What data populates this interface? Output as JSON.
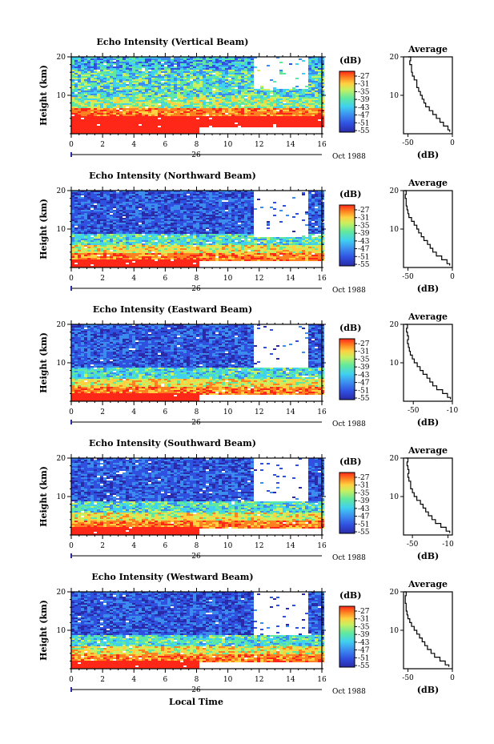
{
  "chart_data": [
    {
      "type": "heatmap",
      "beam": "vertical",
      "title": "Echo Intensity (Vertical Beam)",
      "ylabel": "Height (km)",
      "xlabel": "",
      "x_ticks": [
        "0",
        "2",
        "4",
        "6",
        "8",
        "10",
        "12",
        "14",
        "16"
      ],
      "y_ticks": [
        "10",
        "20"
      ],
      "xlim": [
        0,
        16
      ],
      "ylim": [
        0,
        20
      ],
      "date_label": "Oct 1988",
      "day_label": "26",
      "colorbar_label": "(dB)",
      "colorbar_ticks": [
        "-27",
        "-31",
        "-35",
        "-39",
        "-43",
        "-47",
        "-51",
        "-55"
      ],
      "missing_after_8": true,
      "missing_block": [
        11.5,
        15,
        12,
        20
      ],
      "profile": {
        "title": "Average",
        "xlabel": "(dB)",
        "x_ticks": [
          "-50",
          "0"
        ],
        "y_ticks": [
          "10",
          "20"
        ],
        "xlim": [
          -55,
          0
        ],
        "heights": [
          0.5,
          1,
          2,
          3,
          4,
          5,
          6,
          7,
          8,
          9,
          10,
          11,
          12,
          13,
          14,
          15,
          16,
          17,
          18,
          19,
          20
        ],
        "values": [
          -3,
          -5,
          -10,
          -14,
          -18,
          -22,
          -26,
          -30,
          -32,
          -34,
          -36,
          -38,
          -40,
          -40,
          -43,
          -45,
          -46,
          -46,
          -48,
          -47,
          -50
        ]
      }
    },
    {
      "type": "heatmap",
      "beam": "northward",
      "title": "Echo Intensity (Northward Beam)",
      "ylabel": "Height (km)",
      "xlabel": "",
      "x_ticks": [
        "0",
        "2",
        "4",
        "6",
        "8",
        "10",
        "12",
        "14",
        "16"
      ],
      "y_ticks": [
        "10",
        "20"
      ],
      "xlim": [
        0,
        16
      ],
      "ylim": [
        0,
        20
      ],
      "date_label": "Oct 1988",
      "day_label": "26",
      "colorbar_label": "(dB)",
      "colorbar_ticks": [
        "-27",
        "-31",
        "-35",
        "-39",
        "-43",
        "-47",
        "-51",
        "-55"
      ],
      "missing_after_8": true,
      "missing_block": [
        11.5,
        15,
        8,
        20
      ],
      "profile": {
        "title": "Average",
        "xlabel": "(dB)",
        "x_ticks": [
          "-50",
          "0"
        ],
        "y_ticks": [
          "10",
          "20"
        ],
        "xlim": [
          -55,
          0
        ],
        "heights": [
          0.5,
          1,
          2,
          3,
          4,
          5,
          6,
          7,
          8,
          9,
          10,
          11,
          12,
          13,
          14,
          15,
          16,
          17,
          18,
          19,
          20
        ],
        "values": [
          -3,
          -6,
          -12,
          -18,
          -22,
          -25,
          -28,
          -32,
          -35,
          -38,
          -40,
          -43,
          -46,
          -49,
          -50,
          -51,
          -52,
          -52,
          -53,
          -52,
          -54
        ]
      }
    },
    {
      "type": "heatmap",
      "beam": "eastward",
      "title": "Echo Intensity (Eastward Beam)",
      "ylabel": "Height (km)",
      "xlabel": "",
      "x_ticks": [
        "0",
        "2",
        "4",
        "6",
        "8",
        "10",
        "12",
        "14",
        "16"
      ],
      "y_ticks": [
        "10",
        "20"
      ],
      "xlim": [
        0,
        16
      ],
      "ylim": [
        0,
        20
      ],
      "date_label": "Oct 1988",
      "day_label": "26",
      "colorbar_label": "(dB)",
      "colorbar_ticks": [
        "-27",
        "-31",
        "-35",
        "-39",
        "-43",
        "-47",
        "-51",
        "-55"
      ],
      "missing_after_8": true,
      "missing_block": [
        11.5,
        15,
        9,
        20
      ],
      "profile": {
        "title": "Average",
        "xlabel": "(dB)",
        "x_ticks": [
          "-50",
          "-10"
        ],
        "y_ticks": [
          "10",
          "20"
        ],
        "xlim": [
          -60,
          -10
        ],
        "heights": [
          0.5,
          1,
          2,
          3,
          4,
          5,
          6,
          7,
          8,
          9,
          10,
          11,
          12,
          13,
          14,
          15,
          16,
          17,
          18,
          19,
          20
        ],
        "values": [
          -12,
          -15,
          -20,
          -26,
          -30,
          -33,
          -36,
          -40,
          -43,
          -46,
          -49,
          -51,
          -53,
          -54,
          -55,
          -56,
          -55,
          -56,
          -57,
          -56,
          -58
        ]
      }
    },
    {
      "type": "heatmap",
      "beam": "southward",
      "title": "Echo Intensity (Southward Beam)",
      "ylabel": "Height (km)",
      "xlabel": "",
      "x_ticks": [
        "0",
        "2",
        "4",
        "6",
        "8",
        "10",
        "12",
        "14",
        "16"
      ],
      "y_ticks": [
        "10",
        "20"
      ],
      "xlim": [
        0,
        16
      ],
      "ylim": [
        0,
        20
      ],
      "date_label": "Oct 1988",
      "day_label": "26",
      "colorbar_label": "(dB)",
      "colorbar_ticks": [
        "-27",
        "-31",
        "-35",
        "-39",
        "-43",
        "-47",
        "-51",
        "-55"
      ],
      "missing_after_8": true,
      "missing_block": [
        11.5,
        15,
        9,
        20
      ],
      "profile": {
        "title": "Average",
        "xlabel": "(dB)",
        "x_ticks": [
          "-50",
          "-10"
        ],
        "y_ticks": [
          "10",
          "20"
        ],
        "xlim": [
          -60,
          -5
        ],
        "heights": [
          0.5,
          1,
          2,
          3,
          4,
          5,
          6,
          7,
          8,
          9,
          10,
          11,
          12,
          13,
          14,
          15,
          16,
          17,
          18,
          19,
          20
        ],
        "values": [
          -8,
          -12,
          -18,
          -24,
          -28,
          -32,
          -35,
          -38,
          -41,
          -45,
          -48,
          -50,
          -52,
          -52,
          -54,
          -55,
          -54,
          -55,
          -56,
          -55,
          -57
        ]
      }
    },
    {
      "type": "heatmap",
      "beam": "westward",
      "title": "Echo Intensity (Westward Beam)",
      "ylabel": "Height (km)",
      "xlabel": "Local Time",
      "x_ticks": [
        "0",
        "2",
        "4",
        "6",
        "8",
        "10",
        "12",
        "14",
        "16"
      ],
      "y_ticks": [
        "10",
        "20"
      ],
      "xlim": [
        0,
        16
      ],
      "ylim": [
        0,
        20
      ],
      "date_label": "Oct 1988",
      "day_label": "26",
      "colorbar_label": "(dB)",
      "colorbar_ticks": [
        "-27",
        "-31",
        "-35",
        "-39",
        "-43",
        "-47",
        "-51",
        "-55"
      ],
      "missing_after_8": true,
      "missing_block": [
        11.5,
        15,
        9,
        20
      ],
      "profile": {
        "title": "Average",
        "xlabel": "(dB)",
        "x_ticks": [
          "-50",
          "0"
        ],
        "y_ticks": [
          "10",
          "20"
        ],
        "xlim": [
          -55,
          0
        ],
        "heights": [
          0.5,
          1,
          2,
          3,
          4,
          5,
          6,
          7,
          8,
          9,
          10,
          11,
          12,
          13,
          14,
          15,
          16,
          17,
          18,
          19,
          20
        ],
        "values": [
          -4,
          -8,
          -14,
          -20,
          -24,
          -28,
          -31,
          -34,
          -37,
          -40,
          -43,
          -46,
          -48,
          -50,
          -51,
          -52,
          -52,
          -53,
          -53,
          -52,
          -54
        ]
      }
    }
  ],
  "colors": {
    "scale": [
      "#2a2aa8",
      "#3050e0",
      "#3c8cf0",
      "#40d0f0",
      "#60e8a0",
      "#c8f060",
      "#ffd040",
      "#ff8020",
      "#ff2818"
    ]
  }
}
